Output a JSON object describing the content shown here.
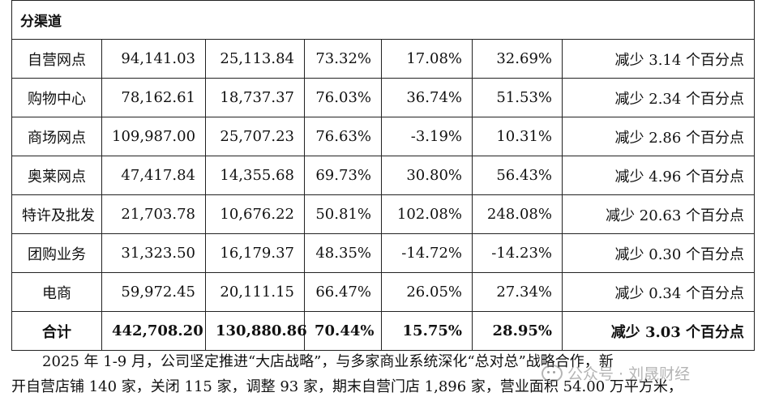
{
  "table": {
    "section_header": "分渠道",
    "rows": [
      {
        "channel": "自营网点",
        "c1": "94,141.03",
        "c2": "25,113.84",
        "c3": "73.32%",
        "c4": "17.08%",
        "c5": "32.69%",
        "c6": "减少 3.14 个百分点"
      },
      {
        "channel": "购物中心",
        "c1": "78,162.61",
        "c2": "18,737.37",
        "c3": "76.03%",
        "c4": "36.74%",
        "c5": "51.53%",
        "c6": "减少 2.34 个百分点"
      },
      {
        "channel": "商场网点",
        "c1": "109,987.00",
        "c2": "25,707.23",
        "c3": "76.63%",
        "c4": "-3.19%",
        "c5": "10.31%",
        "c6": "减少 2.86 个百分点"
      },
      {
        "channel": "奥莱网点",
        "c1": "47,417.84",
        "c2": "14,355.68",
        "c3": "69.73%",
        "c4": "30.80%",
        "c5": "56.43%",
        "c6": "减少 4.96 个百分点"
      },
      {
        "channel": "特许及批发",
        "c1": "21,703.78",
        "c2": "10,676.22",
        "c3": "50.81%",
        "c4": "102.08%",
        "c5": "248.08%",
        "c6": "减少 20.63 个百分点"
      },
      {
        "channel": "团购业务",
        "c1": "31,323.50",
        "c2": "16,179.37",
        "c3": "48.35%",
        "c4": "-14.72%",
        "c5": "-14.23%",
        "c6": "减少 0.30 个百分点"
      },
      {
        "channel": "电商",
        "c1": "59,972.45",
        "c2": "20,111.15",
        "c3": "66.47%",
        "c4": "26.05%",
        "c5": "27.34%",
        "c6": "减少 0.34 个百分点"
      }
    ],
    "total": {
      "channel": "合计",
      "c1": "442,708.20",
      "c2": "130,880.86",
      "c3": "70.44%",
      "c4": "15.75%",
      "c5": "28.95%",
      "c6": "减少 3.03 个百分点"
    }
  },
  "paragraph": {
    "line1": "2025 年 1-9 月，公司坚定推进“大店战略”，与多家商业系统深化“总对总”战略合作，新",
    "line2": "开自营店铺 140 家，关闭 115 家，调整 93 家，期末自营门店 1,896 家，营业面积 54.00 万平方米，"
  },
  "watermark": {
    "text": "公众号 · 刘晟财经",
    "icon": "wechat-icon"
  }
}
